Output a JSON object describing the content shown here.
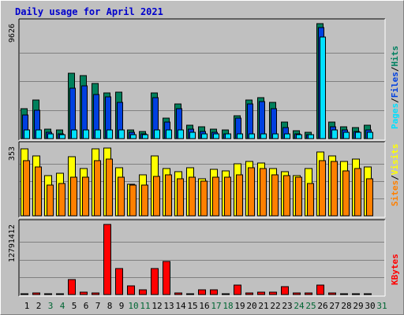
{
  "title": "Daily usage for April 2021",
  "chart_data": [
    {
      "type": "bar",
      "panel": "top",
      "categories": [
        "1",
        "2",
        "3",
        "4",
        "5",
        "6",
        "7",
        "8",
        "9",
        "10",
        "11",
        "12",
        "13",
        "14",
        "15",
        "16",
        "17",
        "18",
        "19",
        "20",
        "21",
        "22",
        "23",
        "24",
        "25",
        "26",
        "27",
        "28",
        "29",
        "30",
        "31"
      ],
      "y_tick_label": "9626",
      "ylim": [
        0,
        9626
      ],
      "legend": [
        {
          "label": "Pages",
          "color": "#00e0ff"
        },
        {
          "label": "Files",
          "color": "#0040e0"
        },
        {
          "label": "Hits",
          "color": "#008060"
        }
      ],
      "legend_separator": "/",
      "series": [
        {
          "name": "Hits",
          "color": "#00805c",
          "values": [
            2500,
            3200,
            800,
            700,
            5500,
            5300,
            4600,
            3800,
            3900,
            700,
            600,
            3800,
            1700,
            2900,
            1100,
            1000,
            800,
            700,
            1900,
            3200,
            3400,
            3000,
            1400,
            650,
            550,
            9626,
            1400,
            1000,
            900,
            1100,
            0
          ]
        },
        {
          "name": "Files",
          "color": "#0040e0",
          "values": [
            2000,
            2400,
            500,
            400,
            4200,
            4400,
            3700,
            3500,
            3000,
            500,
            400,
            3400,
            1400,
            2500,
            800,
            600,
            500,
            400,
            1700,
            2900,
            3100,
            2500,
            900,
            400,
            300,
            9300,
            1000,
            700,
            600,
            700,
            0
          ]
        },
        {
          "name": "Pages",
          "color": "#00e0ff",
          "values": [
            700,
            700,
            400,
            300,
            700,
            700,
            700,
            700,
            700,
            300,
            300,
            700,
            700,
            700,
            500,
            400,
            400,
            400,
            400,
            400,
            400,
            400,
            400,
            300,
            300,
            8500,
            700,
            500,
            500,
            500,
            0
          ]
        }
      ]
    },
    {
      "type": "bar",
      "panel": "middle",
      "categories": [
        "1",
        "2",
        "3",
        "4",
        "5",
        "6",
        "7",
        "8",
        "9",
        "10",
        "11",
        "12",
        "13",
        "14",
        "15",
        "16",
        "17",
        "18",
        "19",
        "20",
        "21",
        "22",
        "23",
        "24",
        "25",
        "26",
        "27",
        "28",
        "29",
        "30",
        "31"
      ],
      "y_tick_label": "353",
      "ylim": [
        0,
        353
      ],
      "legend": [
        {
          "label": "Sites",
          "color": "#ff8000"
        },
        {
          "label": "Visits",
          "color": "#ffff00"
        }
      ],
      "legend_separator": "/",
      "series": [
        {
          "name": "Visits",
          "color": "#ffff00",
          "values": [
            340,
            305,
            205,
            215,
            300,
            240,
            340,
            345,
            245,
            160,
            210,
            305,
            240,
            225,
            245,
            190,
            235,
            230,
            265,
            275,
            270,
            240,
            225,
            205,
            240,
            325,
            305,
            275,
            290,
            250,
            0
          ]
        },
        {
          "name": "Sites",
          "color": "#ff8000",
          "values": [
            280,
            250,
            155,
            165,
            195,
            195,
            280,
            290,
            195,
            155,
            155,
            200,
            210,
            190,
            195,
            175,
            195,
            195,
            210,
            245,
            240,
            210,
            205,
            195,
            165,
            280,
            275,
            230,
            240,
            190,
            0
          ]
        }
      ]
    },
    {
      "type": "bar",
      "panel": "bottom",
      "categories": [
        "1",
        "2",
        "3",
        "4",
        "5",
        "6",
        "7",
        "8",
        "9",
        "10",
        "11",
        "12",
        "13",
        "14",
        "15",
        "16",
        "17",
        "18",
        "19",
        "20",
        "21",
        "22",
        "23",
        "24",
        "25",
        "26",
        "27",
        "28",
        "29",
        "30",
        "31"
      ],
      "y_tick_label": "12791412",
      "ylim": [
        0,
        12791412
      ],
      "legend": [
        {
          "label": "KBytes",
          "color": "#ff0000"
        }
      ],
      "series": [
        {
          "name": "KBytes",
          "color": "#ff0000",
          "values": [
            200000,
            350000,
            150000,
            150000,
            2700000,
            400000,
            350000,
            12791412,
            4700000,
            1600000,
            800000,
            4700000,
            6000000,
            250000,
            200000,
            900000,
            800000,
            150000,
            1700000,
            350000,
            400000,
            400000,
            1500000,
            300000,
            250000,
            1700000,
            250000,
            200000,
            200000,
            150000,
            0
          ]
        }
      ]
    }
  ],
  "x_labels": [
    {
      "text": "1",
      "color": "#000000"
    },
    {
      "text": "2",
      "color": "#000000"
    },
    {
      "text": "3",
      "color": "#006633"
    },
    {
      "text": "4",
      "color": "#006633"
    },
    {
      "text": "5",
      "color": "#000000"
    },
    {
      "text": "6",
      "color": "#000000"
    },
    {
      "text": "7",
      "color": "#000000"
    },
    {
      "text": "8",
      "color": "#000000"
    },
    {
      "text": "9",
      "color": "#000000"
    },
    {
      "text": "10",
      "color": "#006633"
    },
    {
      "text": "11",
      "color": "#006633"
    },
    {
      "text": "12",
      "color": "#000000"
    },
    {
      "text": "13",
      "color": "#000000"
    },
    {
      "text": "14",
      "color": "#000000"
    },
    {
      "text": "15",
      "color": "#000000"
    },
    {
      "text": "16",
      "color": "#000000"
    },
    {
      "text": "17",
      "color": "#006633"
    },
    {
      "text": "18",
      "color": "#006633"
    },
    {
      "text": "19",
      "color": "#000000"
    },
    {
      "text": "20",
      "color": "#000000"
    },
    {
      "text": "21",
      "color": "#000000"
    },
    {
      "text": "22",
      "color": "#000000"
    },
    {
      "text": "23",
      "color": "#000000"
    },
    {
      "text": "24",
      "color": "#006633"
    },
    {
      "text": "25",
      "color": "#006633"
    },
    {
      "text": "26",
      "color": "#000000"
    },
    {
      "text": "27",
      "color": "#000000"
    },
    {
      "text": "28",
      "color": "#000000"
    },
    {
      "text": "29",
      "color": "#000000"
    },
    {
      "text": "30",
      "color": "#000000"
    },
    {
      "text": "31",
      "color": "#006633"
    }
  ]
}
